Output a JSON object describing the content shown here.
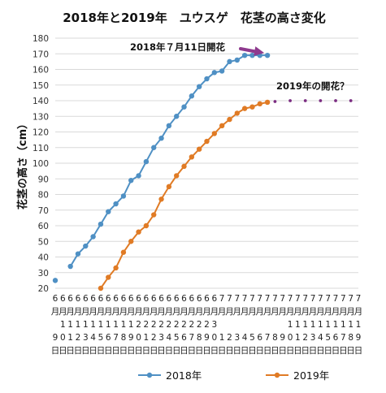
{
  "chart_data": {
    "type": "line",
    "title": "2018年と2019年　ユウスゲ　花茎の高さ変化",
    "ylabel": "花茎の高さ（cm）",
    "xlabel": "",
    "ylim": [
      20,
      180
    ],
    "yticks": [
      20,
      30,
      40,
      50,
      60,
      70,
      80,
      90,
      100,
      110,
      120,
      130,
      140,
      150,
      160,
      170,
      180
    ],
    "grid": true,
    "legend_position": "bottom",
    "x_labels": [
      {
        "month": "6",
        "unit": "月",
        "day": "9",
        "suffix": "日"
      },
      {
        "month": "6",
        "unit": "月",
        "day": "10",
        "suffix": "日"
      },
      {
        "month": "6",
        "unit": "月",
        "day": "11",
        "suffix": "日"
      },
      {
        "month": "6",
        "unit": "月",
        "day": "12",
        "suffix": "日"
      },
      {
        "month": "6",
        "unit": "月",
        "day": "13",
        "suffix": "日"
      },
      {
        "month": "6",
        "unit": "月",
        "day": "14",
        "suffix": "日"
      },
      {
        "month": "6",
        "unit": "月",
        "day": "15",
        "suffix": "日"
      },
      {
        "month": "6",
        "unit": "月",
        "day": "16",
        "suffix": "日"
      },
      {
        "month": "6",
        "unit": "月",
        "day": "17",
        "suffix": "日"
      },
      {
        "month": "6",
        "unit": "月",
        "day": "18",
        "suffix": "日"
      },
      {
        "month": "6",
        "unit": "月",
        "day": "19",
        "suffix": "日"
      },
      {
        "month": "6",
        "unit": "月",
        "day": "20",
        "suffix": "日"
      },
      {
        "month": "6",
        "unit": "月",
        "day": "21",
        "suffix": "日"
      },
      {
        "month": "6",
        "unit": "月",
        "day": "22",
        "suffix": "日"
      },
      {
        "month": "6",
        "unit": "月",
        "day": "23",
        "suffix": "日"
      },
      {
        "month": "6",
        "unit": "月",
        "day": "24",
        "suffix": "日"
      },
      {
        "month": "6",
        "unit": "月",
        "day": "25",
        "suffix": "日"
      },
      {
        "month": "6",
        "unit": "月",
        "day": "26",
        "suffix": "日"
      },
      {
        "month": "6",
        "unit": "月",
        "day": "27",
        "suffix": "日"
      },
      {
        "month": "6",
        "unit": "月",
        "day": "28",
        "suffix": "日"
      },
      {
        "month": "6",
        "unit": "月",
        "day": "29",
        "suffix": "日"
      },
      {
        "month": "6",
        "unit": "月",
        "day": "30",
        "suffix": "日"
      },
      {
        "month": "7",
        "unit": "月",
        "day": "1",
        "suffix": "日"
      },
      {
        "month": "7",
        "unit": "月",
        "day": "2",
        "suffix": "日"
      },
      {
        "month": "7",
        "unit": "月",
        "day": "3",
        "suffix": "日"
      },
      {
        "month": "7",
        "unit": "月",
        "day": "4",
        "suffix": "日"
      },
      {
        "month": "7",
        "unit": "月",
        "day": "5",
        "suffix": "日"
      },
      {
        "month": "7",
        "unit": "月",
        "day": "6",
        "suffix": "日"
      },
      {
        "month": "7",
        "unit": "月",
        "day": "7",
        "suffix": "日"
      },
      {
        "month": "7",
        "unit": "月",
        "day": "8",
        "suffix": "日"
      },
      {
        "month": "7",
        "unit": "月",
        "day": "9",
        "suffix": "日"
      },
      {
        "month": "7",
        "unit": "月",
        "day": "10",
        "suffix": "日"
      },
      {
        "month": "7",
        "unit": "月",
        "day": "11",
        "suffix": "日"
      },
      {
        "month": "7",
        "unit": "月",
        "day": "12",
        "suffix": "日"
      },
      {
        "month": "7",
        "unit": "月",
        "day": "13",
        "suffix": "日"
      },
      {
        "month": "7",
        "unit": "月",
        "day": "14",
        "suffix": "日"
      },
      {
        "month": "7",
        "unit": "月",
        "day": "15",
        "suffix": "日"
      },
      {
        "month": "7",
        "unit": "月",
        "day": "16",
        "suffix": "日"
      },
      {
        "month": "7",
        "unit": "月",
        "day": "17",
        "suffix": "日"
      },
      {
        "month": "7",
        "unit": "月",
        "day": "18",
        "suffix": "日"
      },
      {
        "month": "7",
        "unit": "月",
        "day": "19",
        "suffix": "日"
      }
    ],
    "series": [
      {
        "name": "2018年",
        "color": "#4f90c4",
        "values": [
          25,
          null,
          34,
          42,
          47,
          53,
          61,
          69,
          74,
          79,
          89,
          92,
          101,
          110,
          116,
          124,
          130,
          136,
          143,
          149,
          154,
          158,
          159,
          165,
          166,
          169,
          169,
          169,
          169,
          null,
          null,
          null,
          null,
          null,
          null,
          null,
          null,
          null,
          null,
          null,
          null
        ]
      },
      {
        "name": "2019年",
        "color": "#e07b25",
        "values": [
          null,
          null,
          null,
          null,
          null,
          null,
          20,
          27,
          33,
          43,
          50,
          56,
          60,
          67,
          77,
          85,
          92,
          98,
          104,
          109,
          114,
          119,
          124,
          128,
          132,
          135,
          136,
          138,
          139,
          null,
          null,
          null,
          null,
          null,
          null,
          null,
          null,
          null,
          null,
          null,
          null
        ]
      }
    ],
    "projection": {
      "color": "#7b2d82",
      "values": [
        null,
        null,
        null,
        null,
        null,
        null,
        null,
        null,
        null,
        null,
        null,
        null,
        null,
        null,
        null,
        null,
        null,
        null,
        null,
        null,
        null,
        null,
        null,
        null,
        null,
        null,
        null,
        null,
        null,
        139.5,
        140,
        140,
        140,
        140,
        140,
        140,
        140,
        140,
        140,
        140,
        140
      ]
    },
    "annotations": [
      {
        "text": "2018年７月11日開花",
        "target_x_index": 28,
        "target_value": 169
      },
      {
        "text": "2019年の開花？"
      }
    ],
    "arrow_color": "#8e3a8e"
  }
}
